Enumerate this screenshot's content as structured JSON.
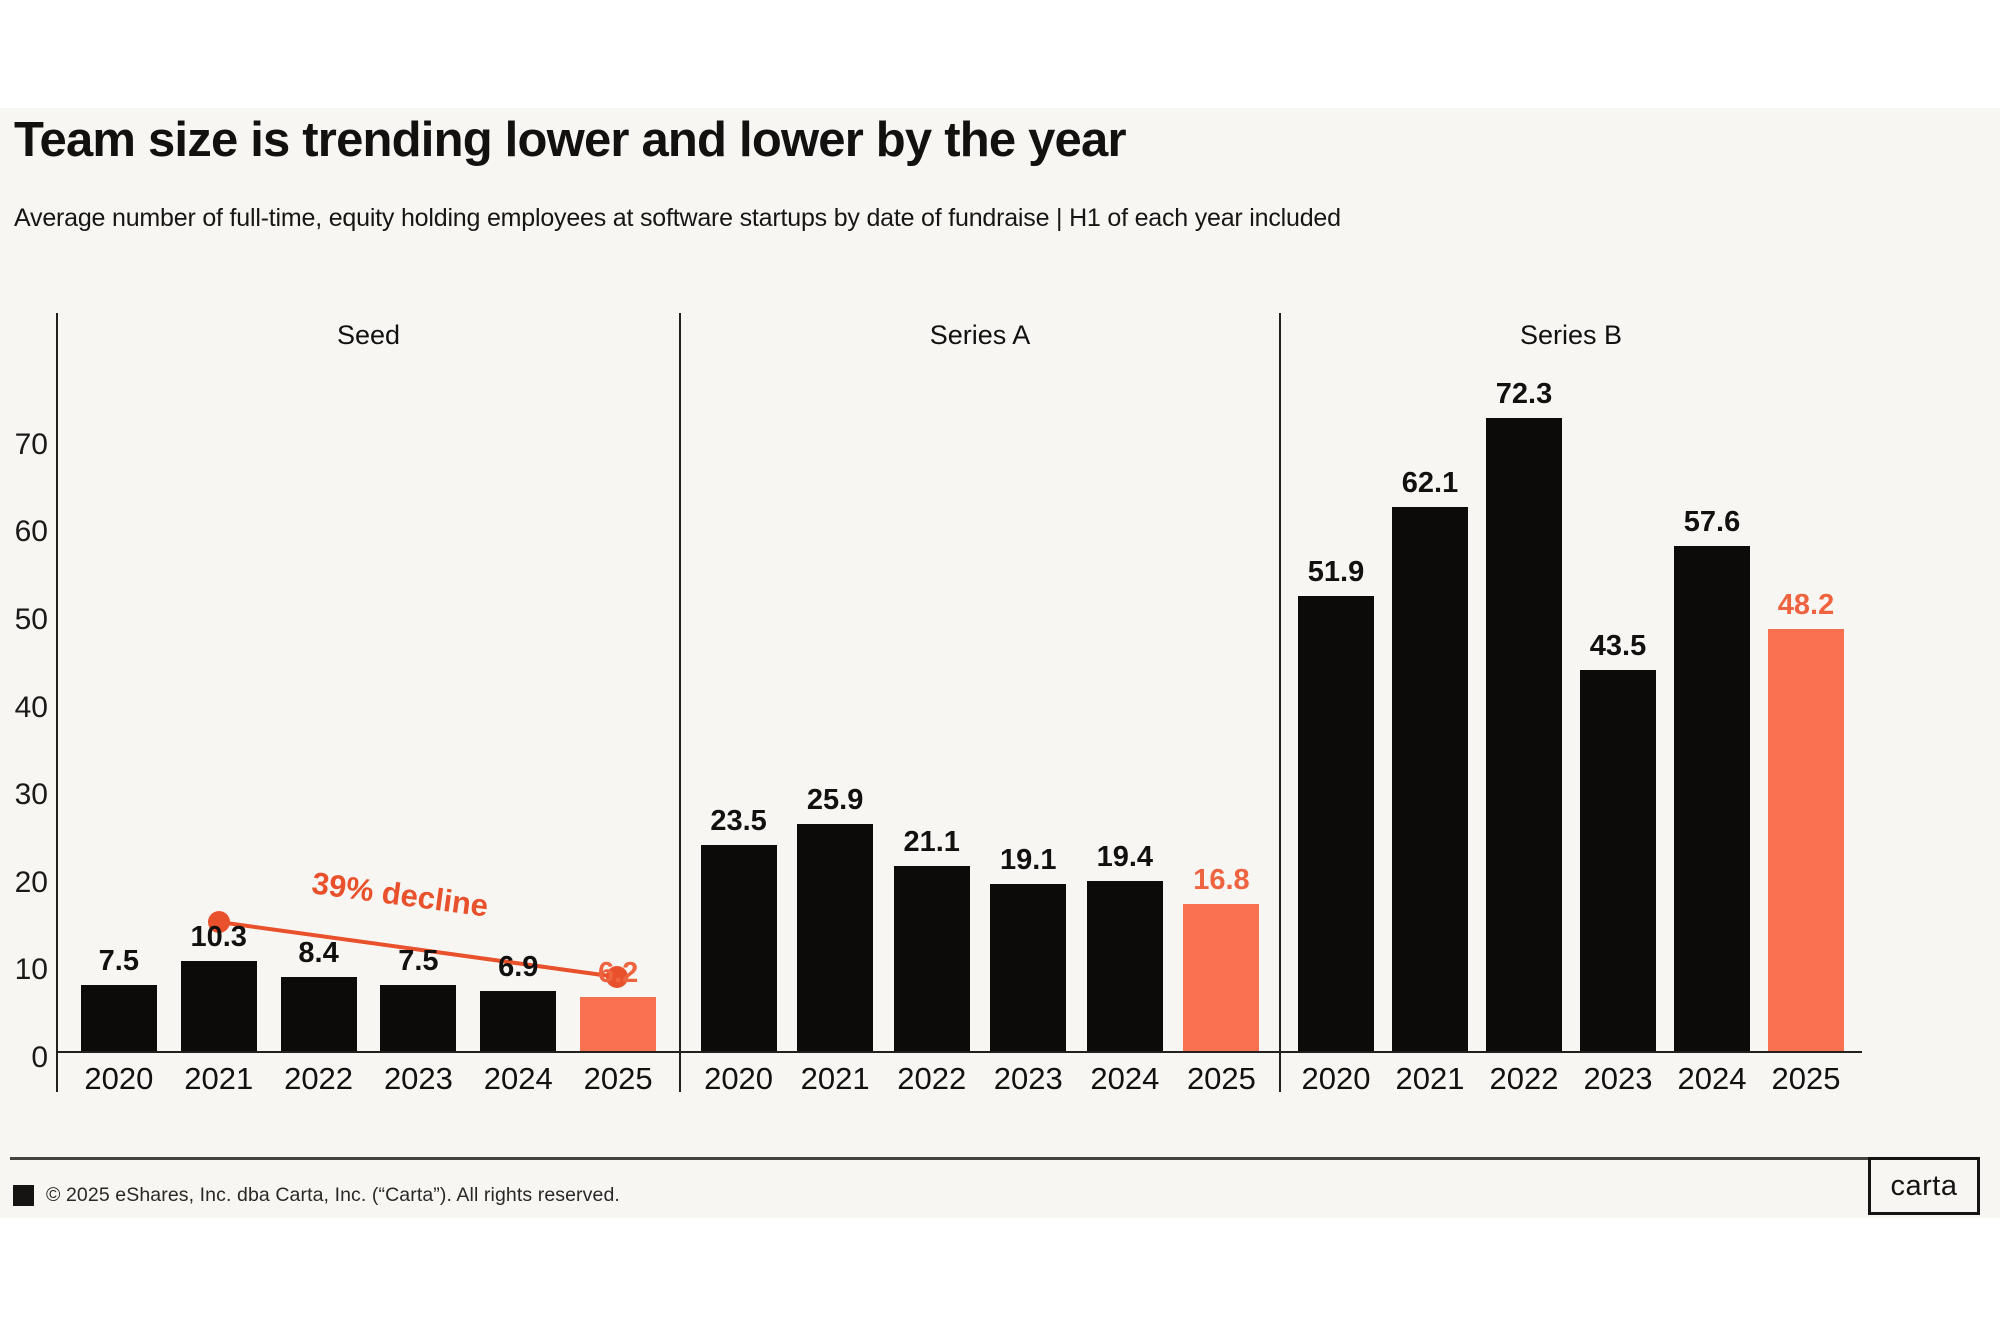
{
  "page": {
    "background": "#ffffff",
    "band_background": "#f8f6f3"
  },
  "header": {
    "title": "Team size is trending lower and lower by the year",
    "subtitle": "Average number of full-time, equity holding employees at software startups by date of fundraise | H1 of each year included"
  },
  "chart_data": {
    "type": "bar",
    "title": "Team size is trending lower and lower by the year",
    "subtitle": "Average number of full-time, equity holding employees at software startups by date of fundraise | H1 of each year included",
    "categories": [
      "2020",
      "2021",
      "2022",
      "2023",
      "2024",
      "2025"
    ],
    "groups": [
      {
        "label": "Seed",
        "values": [
          7.5,
          10.3,
          8.4,
          7.5,
          6.9,
          6.2
        ]
      },
      {
        "label": "Series A",
        "values": [
          23.5,
          25.9,
          21.1,
          19.1,
          19.4,
          16.8
        ]
      },
      {
        "label": "Series B",
        "values": [
          51.9,
          62.1,
          72.3,
          43.5,
          57.6,
          48.2
        ]
      }
    ],
    "highlight_category": "2025",
    "yticks": [
      0,
      10,
      20,
      30,
      40,
      50,
      60,
      70
    ],
    "ylim": [
      0,
      85
    ],
    "grid": false,
    "legend": "none",
    "annotation": {
      "text": "39% decline",
      "panel": "Seed",
      "from_year": "2021",
      "to_year": "2025"
    },
    "colors": {
      "bar": "#0c0b0a",
      "highlight_bar": "#f97150",
      "highlight_label": "#ef6440",
      "annotation": "#e8512b",
      "axis": "#23201e",
      "text": "#131110"
    }
  },
  "footer": {
    "copyright": "© 2025 eShares, Inc. dba Carta, Inc. (“Carta”). All rights reserved.",
    "logo_text": "carta"
  }
}
